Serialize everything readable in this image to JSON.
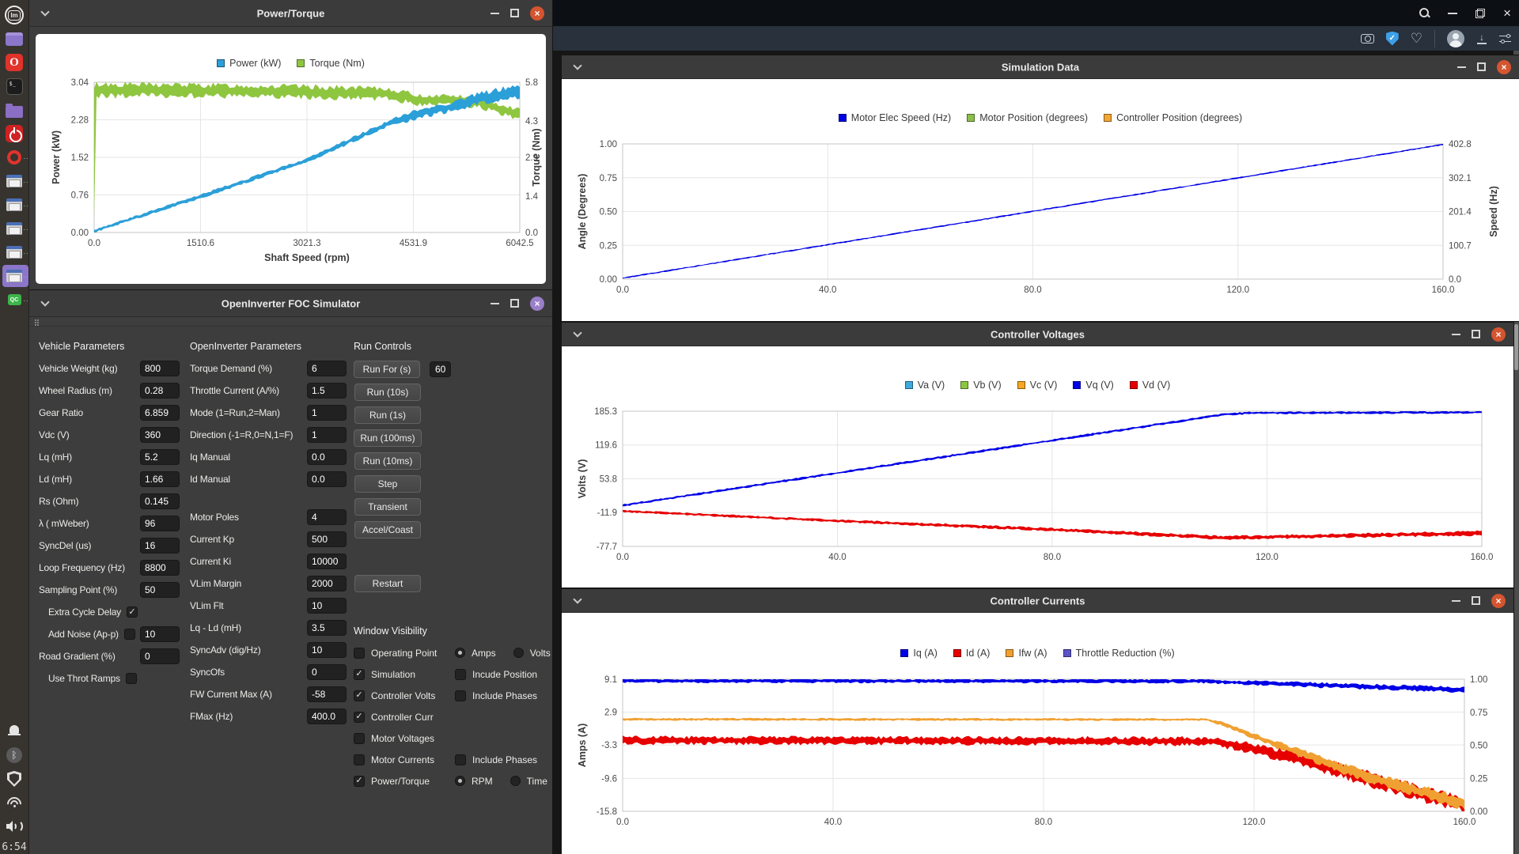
{
  "browser": {
    "titlebar_icons": [
      "search",
      "minimize",
      "restore",
      "close"
    ],
    "toolbar_icons": [
      "camera",
      "shield-check",
      "heart",
      "avatar",
      "download",
      "tune"
    ]
  },
  "dock": {
    "items": [
      {
        "name": "mint-menu",
        "type": "mint",
        "text": "lm"
      },
      {
        "name": "app-window",
        "type": "prect"
      },
      {
        "name": "opera-browser",
        "type": "opera",
        "text": "O"
      },
      {
        "name": "terminal",
        "type": "term",
        "text": "$_"
      },
      {
        "name": "file-manager",
        "type": "folder"
      },
      {
        "name": "power",
        "type": "power"
      },
      {
        "name": "opera-task",
        "type": "oring",
        "dots": ".."
      },
      {
        "name": "window-task-1",
        "type": "win",
        "dots": ".."
      },
      {
        "name": "window-task-2",
        "type": "win",
        "dots": ".."
      },
      {
        "name": "window-task-3",
        "type": "win",
        "dots": ".."
      },
      {
        "name": "window-task-4",
        "type": "win",
        "dots": ".."
      },
      {
        "name": "window-task-5",
        "type": "win",
        "dots": "..",
        "active": true
      },
      {
        "name": "qc-app",
        "type": "qc",
        "text": "QC",
        "dots": ".."
      }
    ],
    "tray": [
      {
        "name": "notifications",
        "type": "bell"
      },
      {
        "name": "bluetooth",
        "type": "bt",
        "text": "ᛒ"
      },
      {
        "name": "security-shield",
        "type": "shield"
      },
      {
        "name": "wifi",
        "type": "wifi"
      },
      {
        "name": "volume",
        "type": "vol"
      }
    ],
    "clock": "6:54"
  },
  "windows": {
    "power_torque": {
      "title": "Power/Torque",
      "chart_data": {
        "type": "line",
        "xlabel": "Shaft Speed (rpm)",
        "x": {
          "ticks": [
            "0.0",
            "1510.6",
            "3021.3",
            "4531.9",
            "6042.5"
          ],
          "range": [
            0,
            6042.5
          ]
        },
        "left": {
          "label": "Power (kW)",
          "ticks": [
            "3.04",
            "2.28",
            "1.52",
            "0.76",
            "0.00"
          ],
          "range": [
            0,
            3.04
          ]
        },
        "right": {
          "label": "Torque (Nm)",
          "ticks": [
            "5.8",
            "4.3",
            "2.9",
            "1.4",
            "0.0"
          ],
          "range": [
            0,
            5.8
          ]
        },
        "legend": [
          {
            "label": "Power (kW)",
            "color": "#2b9fd8"
          },
          {
            "label": "Torque (Nm)",
            "color": "#8fc640"
          }
        ],
        "series": [
          {
            "name": "torque",
            "color": "#8fc640",
            "axis": "right",
            "points": [
              [
                0,
                2.9,
                5.7
              ],
              [
                20,
                5.5,
                0.6
              ],
              [
                1500,
                5.48,
                0.55
              ],
              [
                3000,
                5.42,
                0.55
              ],
              [
                4200,
                5.35,
                0.5
              ],
              [
                4650,
                5.1,
                0.45
              ],
              [
                5000,
                5.15,
                0.4
              ],
              [
                5500,
                5.0,
                0.45
              ],
              [
                6042,
                4.55,
                0.5
              ]
            ]
          },
          {
            "name": "power",
            "color": "#2b9fd8",
            "axis": "left",
            "points": [
              [
                0,
                0.03,
                0.07
              ],
              [
                1510,
                0.73,
                0.09
              ],
              [
                3021,
                1.46,
                0.1
              ],
              [
                4200,
                2.22,
                0.14
              ],
              [
                4650,
                2.42,
                0.22
              ],
              [
                5000,
                2.52,
                0.22
              ],
              [
                5500,
                2.72,
                0.26
              ],
              [
                6042,
                2.87,
                0.3
              ]
            ]
          }
        ]
      }
    },
    "foc": {
      "title": "OpenInverter FOC Simulator",
      "vehicle": {
        "header": "Vehicle Parameters",
        "rows": [
          {
            "label": "Vehicle Weight (kg)",
            "value": "800"
          },
          {
            "label": "Wheel Radius (m)",
            "value": "0.28"
          },
          {
            "label": "Gear Ratio",
            "value": "6.859"
          },
          {
            "label": "Vdc (V)",
            "value": "360"
          },
          {
            "label": "Lq (mH)",
            "value": "5.2"
          },
          {
            "label": "Ld (mH)",
            "value": "1.66"
          },
          {
            "label": "Rs (Ohm)",
            "value": "0.145"
          },
          {
            "label": "λ ( mWeber)",
            "value": "96"
          },
          {
            "label": "SyncDel (us)",
            "value": "16"
          },
          {
            "label": "Loop Frequency (Hz)",
            "value": "8800"
          },
          {
            "label": "Sampling Point (%)",
            "value": "50"
          },
          {
            "label": "Extra Cycle Delay",
            "checkbox": true,
            "checked": true,
            "indent": true
          },
          {
            "label": "Add Noise (Ap-p)",
            "checkbox": true,
            "checked": false,
            "value": "10",
            "indent": true
          },
          {
            "label": "Road Gradient (%)",
            "value": "0"
          },
          {
            "label": "Use Throt Ramps",
            "checkbox": true,
            "checked": false,
            "indent": true
          }
        ]
      },
      "oi": {
        "header": "OpenInverter Parameters",
        "rows": [
          {
            "label": "Torque Demand (%)",
            "value": "6"
          },
          {
            "label": "Throttle Current (A/%)",
            "value": "1.5"
          },
          {
            "label": "Mode (1=Run,2=Man)",
            "value": "1"
          },
          {
            "label": "Direction (-1=R,0=N,1=F)",
            "value": "1"
          },
          {
            "label": "Iq Manual",
            "value": "0.0"
          },
          {
            "label": "Id Manual",
            "value": "0.0"
          },
          {
            "spacer": true
          },
          {
            "label": "Motor Poles",
            "value": "4"
          },
          {
            "label": "Current Kp",
            "value": "500"
          },
          {
            "label": "Current Ki",
            "value": "10000"
          },
          {
            "label": "VLim Margin",
            "value": "2000"
          },
          {
            "label": "VLim Flt",
            "value": "10"
          },
          {
            "label": "Lq - Ld (mH)",
            "value": "3.5"
          },
          {
            "label": "SyncAdv (dig/Hz)",
            "value": "10"
          },
          {
            "label": "SyncOfs",
            "value": "0"
          },
          {
            "label": "FW Current Max (A)",
            "value": "-58"
          },
          {
            "label": "FMax (Hz)",
            "value": "400.0"
          }
        ]
      },
      "run": {
        "header": "Run Controls",
        "buttons": [
          "Run For (s)",
          "Run (10s)",
          "Run (1s)",
          "Run (100ms)",
          "Run (10ms)",
          "Step",
          "Transient",
          "Accel/Coast"
        ],
        "run_for_value": "60",
        "restart_label": "Restart"
      },
      "visibility": {
        "header": "Window Visibility",
        "rows": [
          {
            "check": {
              "label": "Operating Point",
              "checked": false
            },
            "radios": [
              {
                "label": "Amps",
                "selected": true
              },
              {
                "label": "Volts",
                "selected": false
              }
            ]
          },
          {
            "check": {
              "label": "Simulation",
              "checked": true
            },
            "check2": {
              "label": "Incude Position",
              "checked": false
            }
          },
          {
            "check": {
              "label": "Controller Volts",
              "checked": true
            },
            "check2": {
              "label": "Include Phases",
              "checked": false
            }
          },
          {
            "check": {
              "label": "Controller Curr",
              "checked": true
            }
          },
          {
            "check": {
              "label": "Motor Voltages",
              "checked": false
            }
          },
          {
            "check": {
              "label": "Motor Currents",
              "checked": false
            },
            "check2": {
              "label": "Include Phases",
              "checked": false
            }
          },
          {
            "check": {
              "label": "Power/Torque",
              "checked": true
            },
            "radios": [
              {
                "label": "RPM",
                "selected": true
              },
              {
                "label": "Time",
                "selected": false
              }
            ]
          }
        ]
      }
    },
    "simulation": {
      "title": "Simulation Data",
      "chart_data": {
        "type": "line",
        "x": {
          "ticks": [
            "0.0",
            "40.0",
            "80.0",
            "120.0",
            "160.0"
          ],
          "range": [
            0,
            160
          ]
        },
        "left": {
          "label": "Angle (Degrees)",
          "ticks": [
            "1.00",
            "0.75",
            "0.50",
            "0.25",
            "0.00"
          ],
          "range": [
            0,
            1
          ]
        },
        "right": {
          "label": "Speed (Hz)",
          "ticks": [
            "402.8",
            "302.1",
            "201.4",
            "100.7",
            "0.0"
          ],
          "range": [
            0,
            402.8
          ]
        },
        "legend": [
          {
            "label": "Motor Elec Speed (Hz)",
            "color": "#0000e6"
          },
          {
            "label": "Motor Position (degrees)",
            "color": "#8abf4a"
          },
          {
            "label": "Controller Position (degrees)",
            "color": "#f2a735"
          }
        ],
        "series": [
          {
            "name": "motor-elec-speed",
            "color": "#0000e6",
            "axis": "right",
            "points": [
              [
                0,
                3,
                3
              ],
              [
                160,
                401,
                3
              ]
            ]
          }
        ]
      }
    },
    "voltages": {
      "title": "Controller Voltages",
      "chart_data": {
        "type": "line",
        "x": {
          "ticks": [
            "0.0",
            "40.0",
            "80.0",
            "120.0",
            "160.0"
          ],
          "range": [
            0,
            160
          ]
        },
        "left": {
          "label": "Volts (V)",
          "ticks": [
            "185.3",
            "119.6",
            "53.8",
            "-11.9",
            "-77.7"
          ],
          "range": [
            -77.7,
            185.3
          ]
        },
        "legend": [
          {
            "label": "Va (V)",
            "color": "#3fa9dc"
          },
          {
            "label": "Vb (V)",
            "color": "#8cc63e"
          },
          {
            "label": "Vc (V)",
            "color": "#f5a623"
          },
          {
            "label": "Vq (V)",
            "color": "#0000e6"
          },
          {
            "label": "Vd (V)",
            "color": "#e60000"
          }
        ],
        "series": [
          {
            "name": "vd",
            "color": "#e60000",
            "axis": "left",
            "points": [
              [
                0,
                -9,
                5
              ],
              [
                40,
                -28,
                6
              ],
              [
                80,
                -45,
                7
              ],
              [
                112,
                -61,
                8
              ],
              [
                122,
                -59,
                8
              ],
              [
                160,
                -52,
                10
              ]
            ]
          },
          {
            "name": "vq",
            "color": "#0000e6",
            "axis": "left",
            "points": [
              [
                0,
                2,
                5
              ],
              [
                112,
                179,
                5
              ],
              [
                117,
                182,
                5
              ],
              [
                160,
                183,
                5
              ]
            ]
          }
        ]
      }
    },
    "currents": {
      "title": "Controller Currents",
      "chart_data": {
        "type": "line",
        "x": {
          "ticks": [
            "0.0",
            "40.0",
            "80.0",
            "120.0",
            "160.0"
          ],
          "range": [
            0,
            160
          ]
        },
        "left": {
          "label": "Amps (A)",
          "ticks": [
            "9.1",
            "2.9",
            "-3.3",
            "-9.6",
            "-15.8"
          ],
          "range": [
            -15.8,
            9.1
          ]
        },
        "right": {
          "ticks": [
            "1.00",
            "0.75",
            "0.50",
            "0.25",
            "0.00"
          ],
          "range": [
            0,
            1
          ]
        },
        "legend": [
          {
            "label": "Iq (A)",
            "color": "#0000e6"
          },
          {
            "label": "Id (A)",
            "color": "#e60000"
          },
          {
            "label": "Ifw (A)",
            "color": "#f0a030"
          },
          {
            "label": "Throttle Reduction (%)",
            "color": "#5b55c9"
          }
        ],
        "series": [
          {
            "name": "id",
            "color": "#e60000",
            "axis": "left",
            "points": [
              [
                0,
                -2.4,
                1.6
              ],
              [
                60,
                -2.5,
                1.6
              ],
              [
                112,
                -2.6,
                1.7
              ],
              [
                118,
                -3.6,
                2.0
              ],
              [
                130,
                -6.3,
                2.6
              ],
              [
                145,
                -10.6,
                3.0
              ],
              [
                160,
                -14.6,
                3.2
              ]
            ]
          },
          {
            "name": "ifw",
            "color": "#f0a030",
            "axis": "left",
            "points": [
              [
                0,
                1.55,
                0.5
              ],
              [
                111,
                1.5,
                0.5
              ],
              [
                114,
                0.7,
                0.8
              ],
              [
                125,
                -3.5,
                1.5
              ],
              [
                140,
                -8.8,
                2.2
              ],
              [
                160,
                -14.3,
                2.6
              ]
            ]
          },
          {
            "name": "iq",
            "color": "#0000e6",
            "axis": "left",
            "points": [
              [
                0,
                8.8,
                0.8
              ],
              [
                110,
                8.75,
                0.8
              ],
              [
                120,
                8.4,
                0.9
              ],
              [
                160,
                7.1,
                1.2
              ]
            ]
          }
        ]
      }
    }
  }
}
